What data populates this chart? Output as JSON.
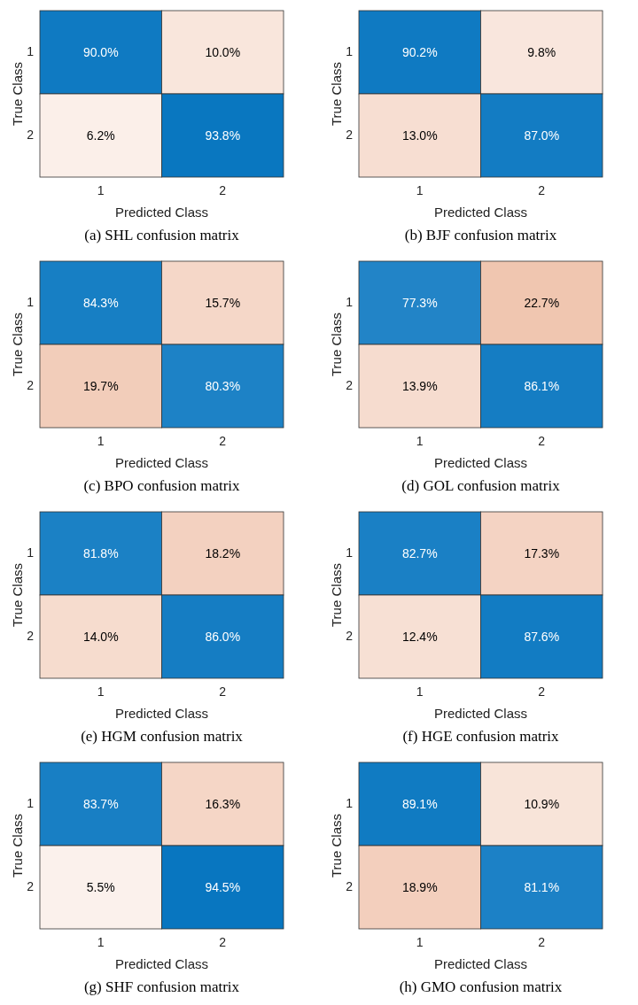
{
  "chart_data": [
    {
      "type": "heatmap",
      "title": "(a) SHL confusion matrix",
      "xlabel": "Predicted Class",
      "ylabel": "True Class",
      "categories": [
        "1",
        "2"
      ],
      "y_categories": [
        "1",
        "2"
      ],
      "cells": [
        [
          90.0,
          10.0
        ],
        [
          6.2,
          93.8
        ]
      ],
      "cell_labels": [
        [
          "90.0%",
          "10.0%"
        ],
        [
          "6.2%",
          "93.8%"
        ]
      ]
    },
    {
      "type": "heatmap",
      "title": "(b) BJF confusion matrix",
      "xlabel": "Predicted Class",
      "ylabel": "True Class",
      "categories": [
        "1",
        "2"
      ],
      "y_categories": [
        "1",
        "2"
      ],
      "cells": [
        [
          90.2,
          9.8
        ],
        [
          13.0,
          87.0
        ]
      ],
      "cell_labels": [
        [
          "90.2%",
          "9.8%"
        ],
        [
          "13.0%",
          "87.0%"
        ]
      ]
    },
    {
      "type": "heatmap",
      "title": "(c) BPO confusion matrix",
      "xlabel": "Predicted Class",
      "ylabel": "True Class",
      "categories": [
        "1",
        "2"
      ],
      "y_categories": [
        "1",
        "2"
      ],
      "cells": [
        [
          84.3,
          15.7
        ],
        [
          19.7,
          80.3
        ]
      ],
      "cell_labels": [
        [
          "84.3%",
          "15.7%"
        ],
        [
          "19.7%",
          "80.3%"
        ]
      ]
    },
    {
      "type": "heatmap",
      "title": "(d) GOL confusion matrix",
      "xlabel": "Predicted Class",
      "ylabel": "True Class",
      "categories": [
        "1",
        "2"
      ],
      "y_categories": [
        "1",
        "2"
      ],
      "cells": [
        [
          77.3,
          22.7
        ],
        [
          13.9,
          86.1
        ]
      ],
      "cell_labels": [
        [
          "77.3%",
          "22.7%"
        ],
        [
          "13.9%",
          "86.1%"
        ]
      ]
    },
    {
      "type": "heatmap",
      "title": "(e) HGM confusion matrix",
      "xlabel": "Predicted Class",
      "ylabel": "True Class",
      "categories": [
        "1",
        "2"
      ],
      "y_categories": [
        "1",
        "2"
      ],
      "cells": [
        [
          81.8,
          18.2
        ],
        [
          14.0,
          86.0
        ]
      ],
      "cell_labels": [
        [
          "81.8%",
          "18.2%"
        ],
        [
          "14.0%",
          "86.0%"
        ]
      ]
    },
    {
      "type": "heatmap",
      "title": "(f) HGE confusion matrix",
      "xlabel": "Predicted Class",
      "ylabel": "True Class",
      "categories": [
        "1",
        "2"
      ],
      "y_categories": [
        "1",
        "2"
      ],
      "cells": [
        [
          82.7,
          17.3
        ],
        [
          12.4,
          87.6
        ]
      ],
      "cell_labels": [
        [
          "82.7%",
          "17.3%"
        ],
        [
          "12.4%",
          "87.6%"
        ]
      ]
    },
    {
      "type": "heatmap",
      "title": "(g) SHF confusion matrix",
      "xlabel": "Predicted Class",
      "ylabel": "True Class",
      "categories": [
        "1",
        "2"
      ],
      "y_categories": [
        "1",
        "2"
      ],
      "cells": [
        [
          83.7,
          16.3
        ],
        [
          5.5,
          94.5
        ]
      ],
      "cell_labels": [
        [
          "83.7%",
          "16.3%"
        ],
        [
          "5.5%",
          "94.5%"
        ]
      ]
    },
    {
      "type": "heatmap",
      "title": "(h) GMO confusion matrix",
      "xlabel": "Predicted Class",
      "ylabel": "True Class",
      "categories": [
        "1",
        "2"
      ],
      "y_categories": [
        "1",
        "2"
      ],
      "cells": [
        [
          89.1,
          10.9
        ],
        [
          18.9,
          81.1
        ]
      ],
      "cell_labels": [
        [
          "89.1%",
          "10.9%"
        ],
        [
          "18.9%",
          "81.1%"
        ]
      ]
    }
  ]
}
